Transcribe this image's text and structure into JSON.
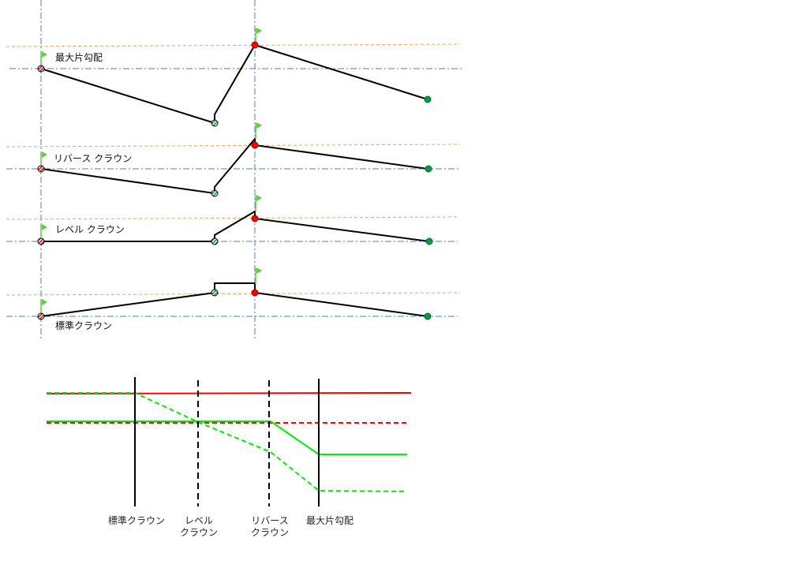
{
  "sections": {
    "max_superelevation": "最大片勾配",
    "reverse_crown": "リバース クラウン",
    "level_crown": "レベル クラウン",
    "normal_crown": "標準クラウン"
  },
  "bottom_labels": {
    "normal_crown": "標準クラウン",
    "level_crown": "レベル\nクラウン",
    "reverse_crown": "リバース\nクラウン",
    "max_superelevation": "最大片勾配"
  },
  "colors": {
    "guide_blue": "#4a7fc8",
    "guide_orange": "#f4a460",
    "profile_red": "#ff0000",
    "profile_green": "#00ee00",
    "node_red": "#ff0000",
    "node_green": "#0a9a3c",
    "flag_green": "#5bd03a"
  },
  "icons": {
    "flag": "flag-icon",
    "hatched_node": "hatched-node-icon",
    "solid_node": "solid-node-icon"
  }
}
